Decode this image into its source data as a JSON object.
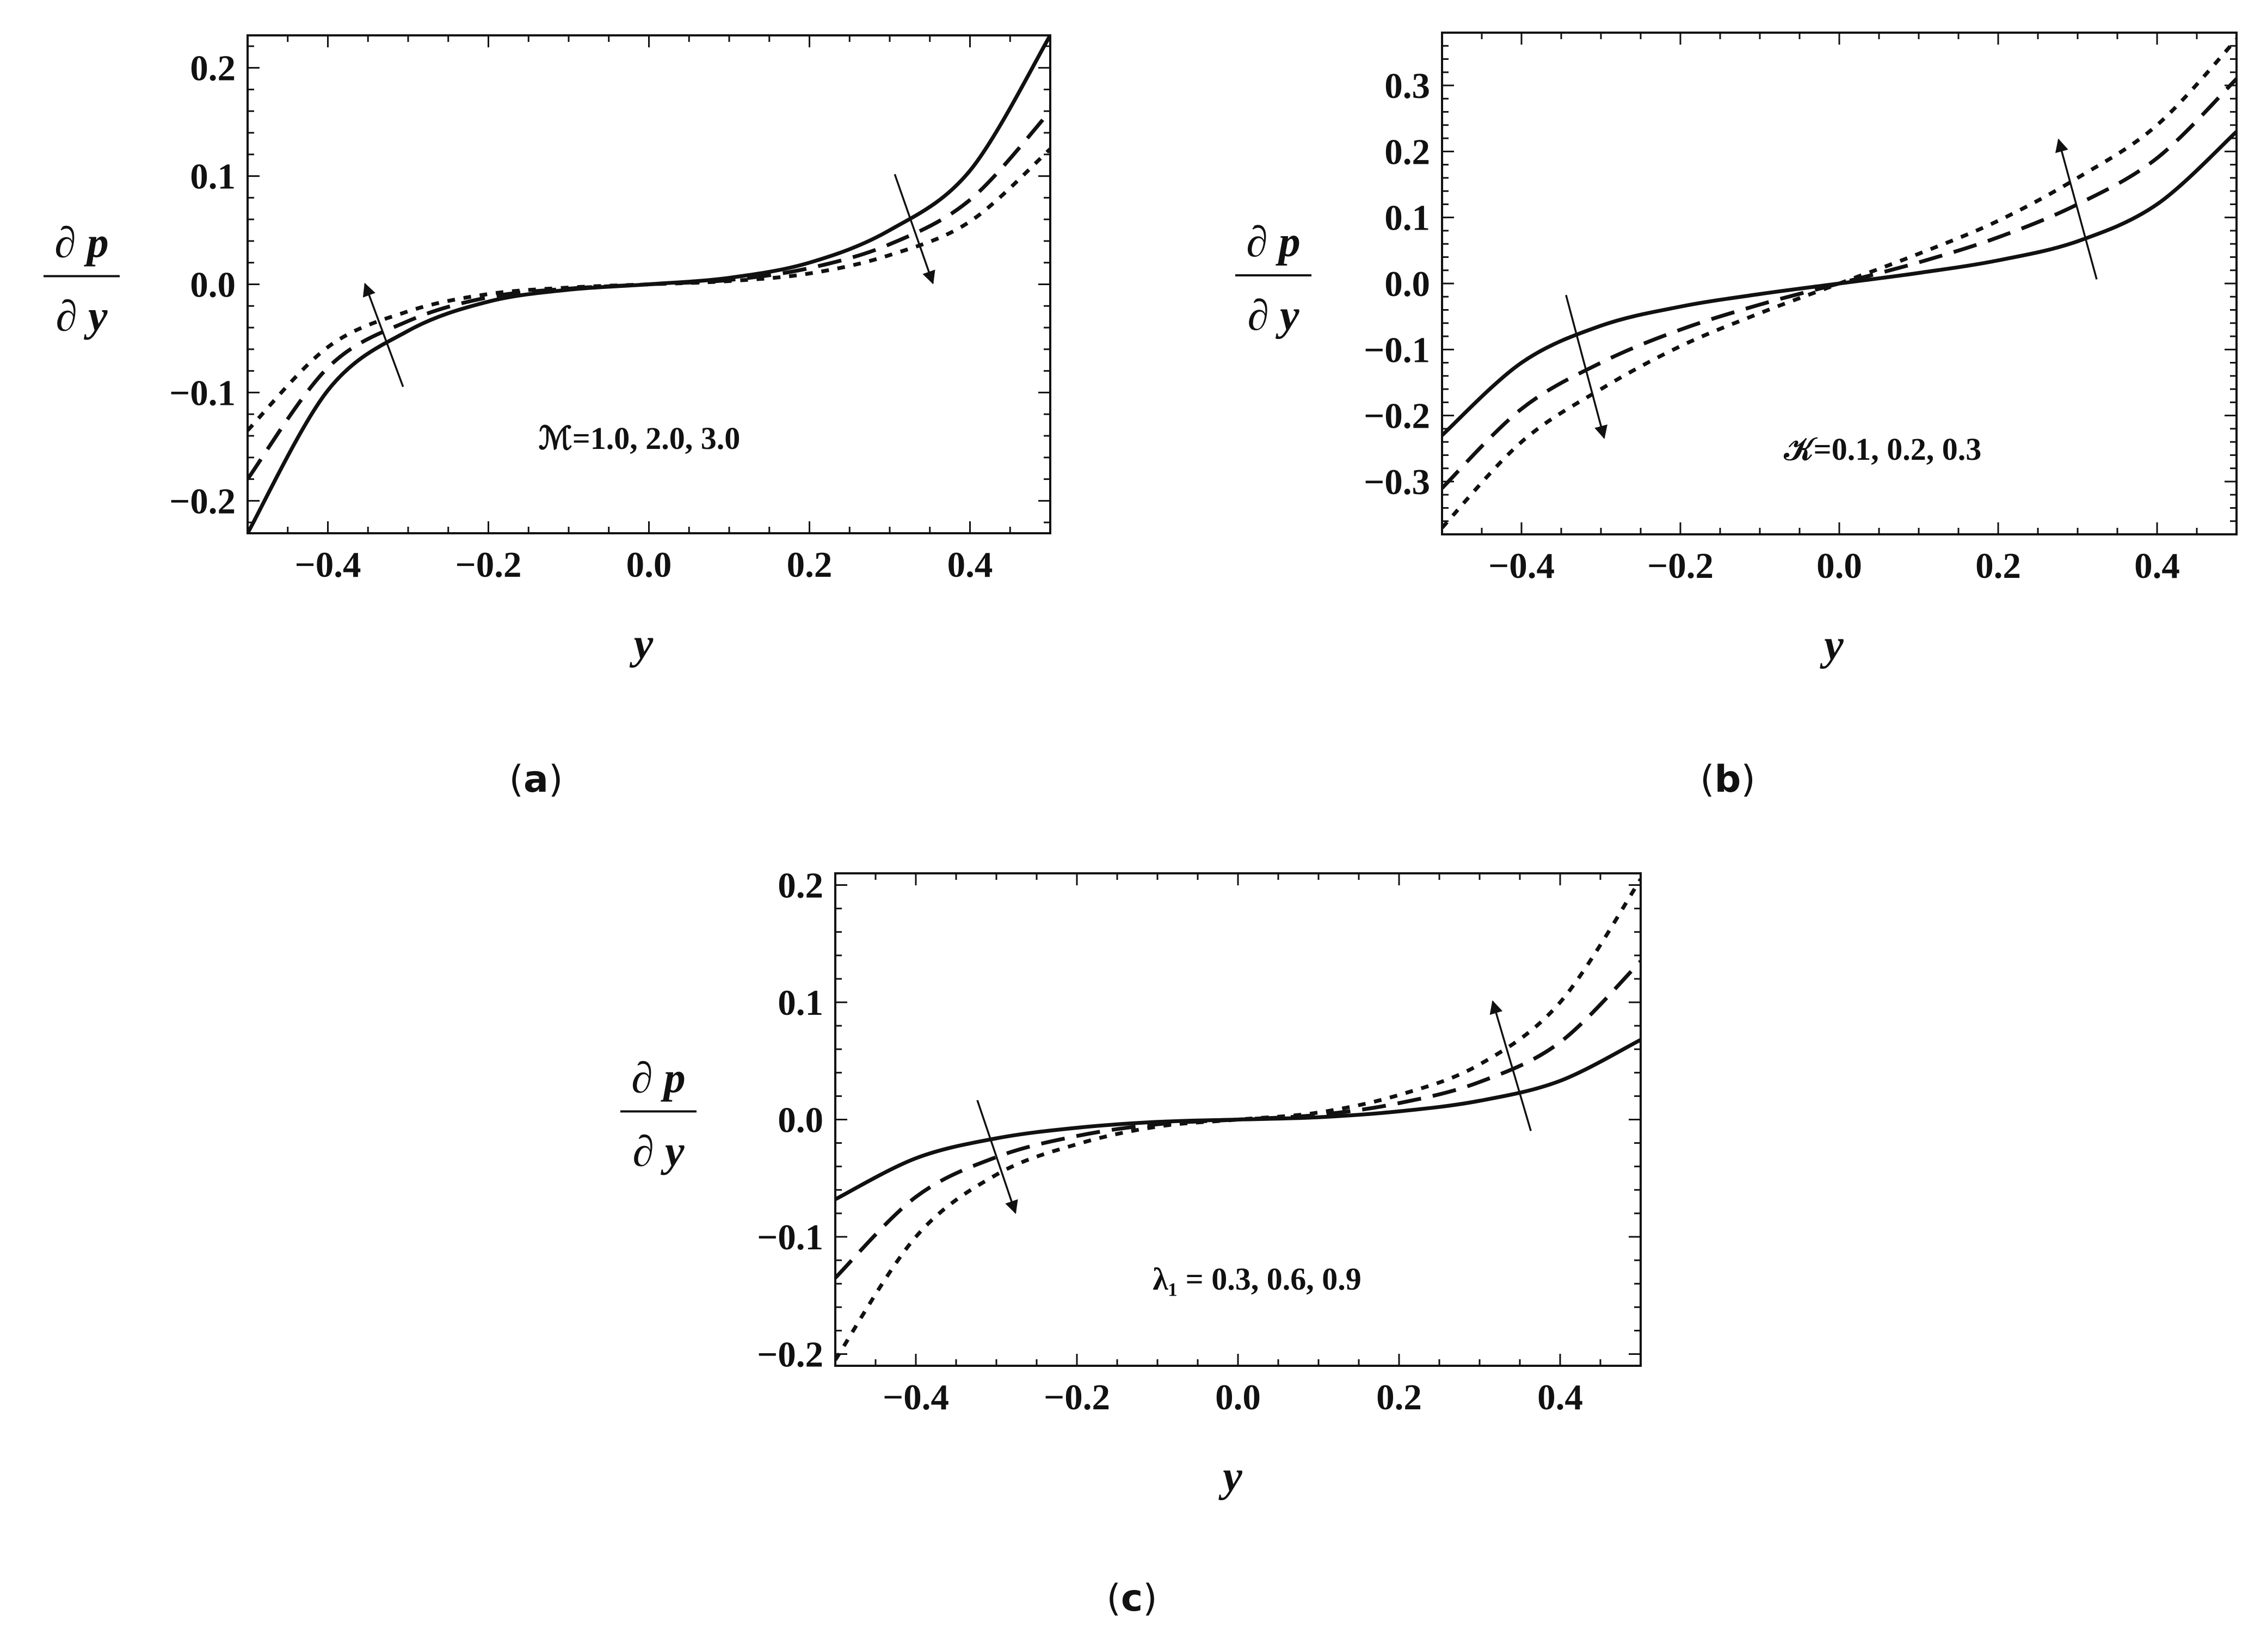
{
  "figure": {
    "panels": [
      {
        "caption_letter": "a",
        "annotation": "ℳ=1.0, 2.0, 3.0",
        "arrow_left_dir": "up",
        "arrow_right_dir": "down"
      },
      {
        "caption_letter": "b",
        "annotation": "𝒦=0.1, 0.2, 0.3",
        "arrow_left_dir": "down",
        "arrow_right_dir": "up"
      },
      {
        "caption_letter": "c",
        "annotation": "λ₁ = 0.3,  0.6,  0.9",
        "arrow_left_dir": "down",
        "arrow_right_dir": "up"
      }
    ]
  },
  "chart_data": [
    {
      "type": "line",
      "title": "",
      "xlabel": "y",
      "ylabel_numerator": "∂ p",
      "ylabel_denominator": "∂ y",
      "xlim": [
        -0.5,
        0.5
      ],
      "ylim": [
        -0.23,
        0.23
      ],
      "xticks": [
        -0.4,
        -0.2,
        0.0,
        0.2,
        0.4
      ],
      "xtick_labels": [
        "−0.4",
        "−0.2",
        "0.0",
        "0.2",
        "0.4"
      ],
      "yticks": [
        -0.2,
        -0.1,
        0.0,
        0.1,
        0.2
      ],
      "ytick_labels": [
        "−0.2",
        "−0.1",
        "0.0",
        "0.1",
        "0.2"
      ],
      "x": [
        -0.5,
        -0.4,
        -0.3,
        -0.2,
        -0.1,
        0.0,
        0.1,
        0.2,
        0.3,
        0.4,
        0.5
      ],
      "series": [
        {
          "name": "ℳ=1.0",
          "style": "solid",
          "values": [
            -0.23,
            -0.098,
            -0.043,
            -0.016,
            -0.005,
            0.0,
            0.006,
            0.02,
            0.05,
            0.105,
            0.23
          ]
        },
        {
          "name": "ℳ=2.0",
          "style": "dashed",
          "values": [
            -0.18,
            -0.077,
            -0.034,
            -0.012,
            -0.004,
            0.0,
            0.004,
            0.015,
            0.037,
            0.078,
            0.16
          ]
        },
        {
          "name": "ℳ=3.0",
          "style": "dotted",
          "values": [
            -0.135,
            -0.058,
            -0.025,
            -0.009,
            -0.003,
            0.0,
            0.003,
            0.01,
            0.027,
            0.058,
            0.125
          ]
        }
      ]
    },
    {
      "type": "line",
      "title": "",
      "xlabel": "y",
      "ylabel_numerator": "∂ p",
      "ylabel_denominator": "∂ y",
      "xlim": [
        -0.5,
        0.5
      ],
      "ylim": [
        -0.38,
        0.38
      ],
      "xticks": [
        -0.4,
        -0.2,
        0.0,
        0.2,
        0.4
      ],
      "xtick_labels": [
        "−0.4",
        "−0.2",
        "0.0",
        "0.2",
        "0.4"
      ],
      "yticks": [
        -0.3,
        -0.2,
        -0.1,
        0.0,
        0.1,
        0.2,
        0.3
      ],
      "ytick_labels": [
        "−0.3",
        "−0.2",
        "−0.1",
        "0.0",
        "0.1",
        "0.2",
        "0.3"
      ],
      "x": [
        -0.5,
        -0.4,
        -0.3,
        -0.2,
        -0.1,
        0.0,
        0.1,
        0.2,
        0.3,
        0.4,
        0.5
      ],
      "series": [
        {
          "name": "𝒦=0.1",
          "style": "solid",
          "values": [
            -0.23,
            -0.12,
            -0.064,
            -0.035,
            -0.016,
            0.0,
            0.016,
            0.035,
            0.064,
            0.12,
            0.23
          ]
        },
        {
          "name": "𝒦=0.2",
          "style": "dashed",
          "values": [
            -0.31,
            -0.19,
            -0.12,
            -0.07,
            -0.032,
            0.0,
            0.032,
            0.07,
            0.12,
            0.19,
            0.31
          ]
        },
        {
          "name": "𝒦=0.3",
          "style": "dotted",
          "values": [
            -0.37,
            -0.24,
            -0.16,
            -0.095,
            -0.045,
            0.0,
            0.045,
            0.095,
            0.16,
            0.24,
            0.37
          ]
        }
      ]
    },
    {
      "type": "line",
      "title": "",
      "xlabel": "y",
      "ylabel_numerator": "∂ p",
      "ylabel_denominator": "∂ y",
      "xlim": [
        -0.5,
        0.5
      ],
      "ylim": [
        -0.21,
        0.21
      ],
      "xticks": [
        -0.4,
        -0.2,
        0.0,
        0.2,
        0.4
      ],
      "xtick_labels": [
        "−0.4",
        "−0.2",
        "0.0",
        "0.2",
        "0.4"
      ],
      "yticks": [
        -0.2,
        -0.1,
        0.0,
        0.1,
        0.2
      ],
      "ytick_labels": [
        "−0.2",
        "−0.1",
        "0.0",
        "0.1",
        "0.2"
      ],
      "x": [
        -0.5,
        -0.4,
        -0.3,
        -0.2,
        -0.1,
        0.0,
        0.1,
        0.2,
        0.3,
        0.4,
        0.5
      ],
      "series": [
        {
          "name": "λ₁=0.3",
          "style": "solid",
          "values": [
            -0.068,
            -0.033,
            -0.016,
            -0.007,
            -0.002,
            0.0,
            0.002,
            0.007,
            0.016,
            0.033,
            0.068
          ]
        },
        {
          "name": "λ₁=0.6",
          "style": "dashed",
          "values": [
            -0.135,
            -0.066,
            -0.032,
            -0.014,
            -0.004,
            0.0,
            0.004,
            0.014,
            0.032,
            0.066,
            0.135
          ]
        },
        {
          "name": "λ₁=0.9",
          "style": "dotted",
          "values": [
            -0.205,
            -0.1,
            -0.047,
            -0.021,
            -0.006,
            0.0,
            0.006,
            0.021,
            0.047,
            0.1,
            0.205
          ]
        }
      ]
    }
  ]
}
